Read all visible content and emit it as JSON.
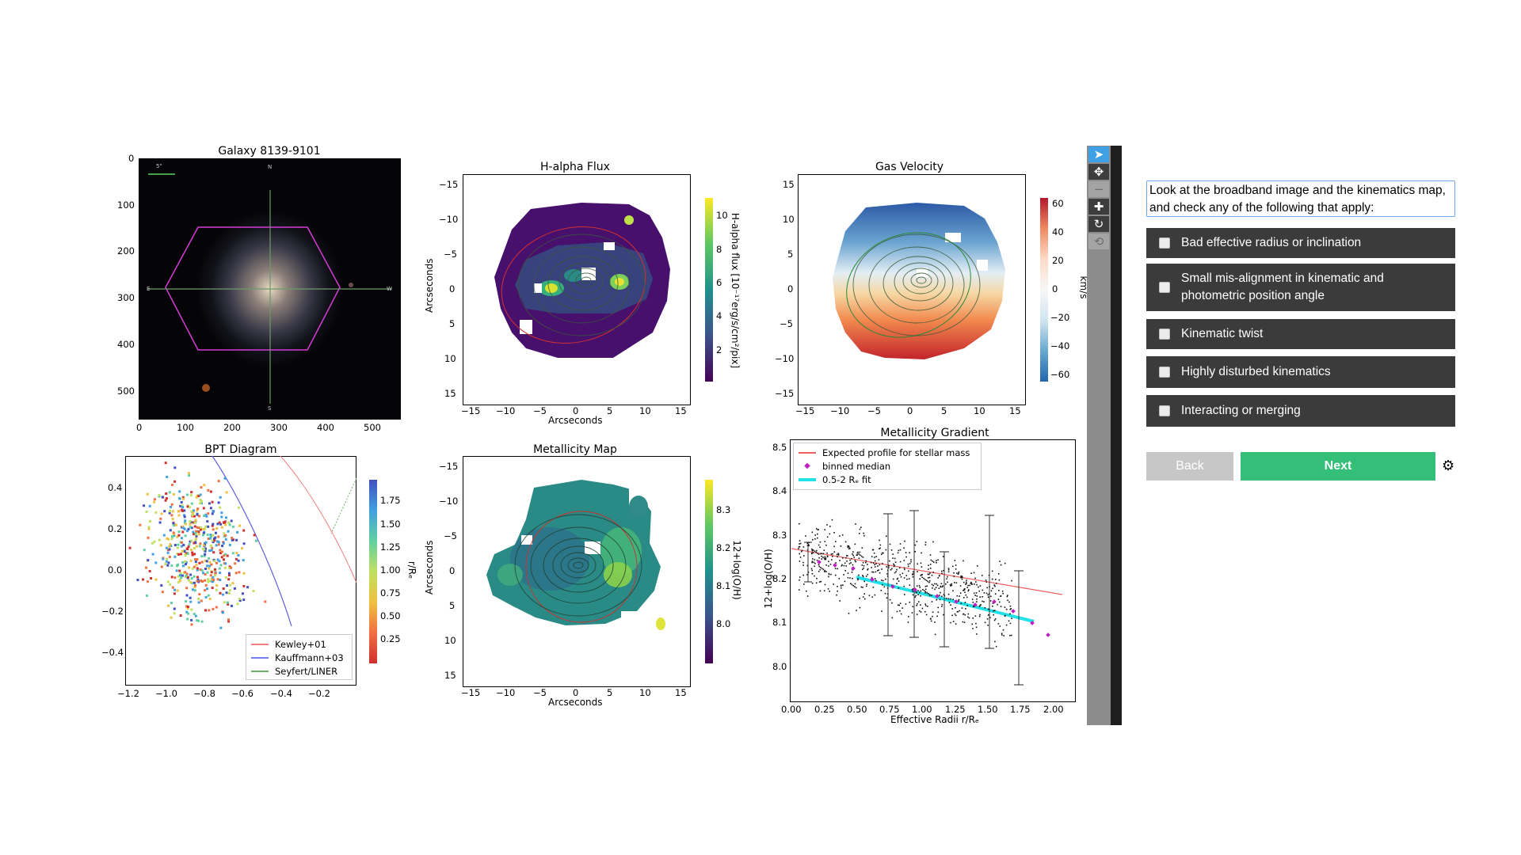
{
  "galaxy": {
    "title": "Galaxy 8139-9101",
    "scalebar": "5\"",
    "compass": {
      "n": "N",
      "s": "S",
      "e": "E",
      "w": "W"
    },
    "yticks": [
      "0",
      "100",
      "200",
      "300",
      "400",
      "500"
    ],
    "xticks": [
      "0",
      "100",
      "200",
      "300",
      "400",
      "500"
    ]
  },
  "halpha": {
    "title": "H-alpha Flux",
    "xlabel": "Arcseconds",
    "ylabel": "Arcseconds",
    "xticks": [
      "−15",
      "−10",
      "−5",
      "0",
      "5",
      "10",
      "15"
    ],
    "yticks": [
      "−15",
      "−10",
      "−5",
      "0",
      "5",
      "10",
      "15"
    ],
    "cbar_ticks": [
      "10",
      "8",
      "6",
      "4",
      "2"
    ],
    "cbar_label": "H-alpha flux [10⁻¹⁷erg/s/cm²/pix]"
  },
  "velocity": {
    "title": "Gas Velocity",
    "xticks": [
      "−15",
      "−10",
      "−5",
      "0",
      "5",
      "10",
      "15"
    ],
    "yticks": [
      "15",
      "10",
      "5",
      "0",
      "−5",
      "−10",
      "−15"
    ],
    "cbar_ticks": [
      "60",
      "40",
      "20",
      "0",
      "−20",
      "−40",
      "−60"
    ],
    "cbar_label": "km/s"
  },
  "bpt": {
    "title": "BPT Diagram",
    "yticks": [
      "0.4",
      "0.2",
      "0.0",
      "−0.2",
      "−0.4"
    ],
    "xticks": [
      "−1.2",
      "−1.0",
      "−0.8",
      "−0.6",
      "−0.4",
      "−0.2"
    ],
    "cbar_ticks": [
      "1.75",
      "1.50",
      "1.25",
      "1.00",
      "0.75",
      "0.50",
      "0.25"
    ],
    "cbar_label": "r/Rₑ",
    "legend": [
      {
        "label": "Kewley+01",
        "color": "#f08080"
      },
      {
        "label": "Kauffmann+03",
        "color": "#7a7af0"
      },
      {
        "label": "Seyfert/LINER",
        "color": "#6ab56a"
      }
    ]
  },
  "metallicity": {
    "title": "Metallicity Map",
    "xlabel": "Arcseconds",
    "ylabel": "Arcseconds",
    "xticks": [
      "−15",
      "−10",
      "−5",
      "0",
      "5",
      "10",
      "15"
    ],
    "yticks": [
      "−15",
      "−10",
      "−5",
      "0",
      "5",
      "10",
      "15"
    ],
    "cbar_ticks": [
      "8.3",
      "8.2",
      "8.1",
      "8.0"
    ],
    "cbar_label": "12+log(O/H)"
  },
  "gradient": {
    "title": "Metallicity Gradient",
    "ylabel": "12+log(O/H)",
    "xlabel": "Effective Radii r/Rₑ",
    "yticks": [
      "8.5",
      "8.4",
      "8.3",
      "8.2",
      "8.1",
      "8.0"
    ],
    "xticks": [
      "0.00",
      "0.25",
      "0.50",
      "0.75",
      "1.00",
      "1.25",
      "1.50",
      "1.75",
      "2.00"
    ],
    "legend": [
      {
        "label": "Expected profile for stellar mass",
        "color": "#f06060"
      },
      {
        "label": "binned median",
        "color": "#c020c0"
      },
      {
        "label": "0.5-2 Rₑ fit",
        "color": "#20e0e8"
      }
    ]
  },
  "toolbar": {
    "tools": [
      "pan-select",
      "move",
      "zoom-out",
      "zoom-in",
      "rotate",
      "reset"
    ]
  },
  "task": {
    "question": "Look at the broadband image and the kinematics map, and check any of the following that apply:",
    "options": [
      "Bad effective radius or inclination",
      "Small mis-alignment in kinematic and photometric position angle",
      "Kinematic twist",
      "Highly disturbed kinematics",
      "Interacting or merging"
    ],
    "back_label": "Back",
    "next_label": "Next"
  }
}
